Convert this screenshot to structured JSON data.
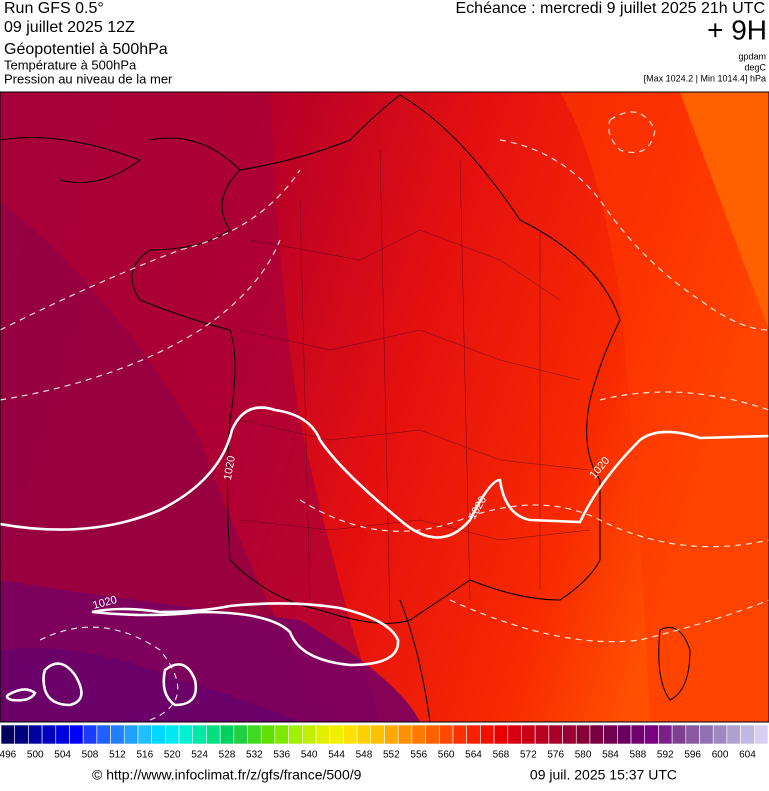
{
  "header": {
    "run": "Run GFS 0.5°",
    "run_date": "09 juillet 2025 12Z",
    "field_1": "Géopotentiel à 500hPa",
    "field_2": "Température à 500hPa",
    "field_3": "Pression au niveau de la mer",
    "valid_time": "Echéance : mercredi 9 juillet 2025 21h UTC",
    "lead": "+ 9H",
    "unit_1": "gpdam",
    "unit_2": "degC",
    "range": "[Max 1024.2 | Min 1014.4] hPa"
  },
  "map": {
    "contour_labels": [
      "1020",
      "1020",
      "1020",
      "1020"
    ]
  },
  "colorbar": {
    "ticks": [
      496,
      500,
      504,
      508,
      512,
      516,
      520,
      524,
      528,
      532,
      536,
      540,
      544,
      548,
      552,
      556,
      560,
      564,
      568,
      572,
      576,
      580,
      584,
      588,
      592,
      596,
      600,
      604
    ],
    "colors": [
      "#000060",
      "#000080",
      "#0000a0",
      "#0000c0",
      "#0000e0",
      "#0000ff",
      "#1a3cff",
      "#2060ff",
      "#2080ff",
      "#20a0ff",
      "#20c0ff",
      "#00d8ff",
      "#00e8f0",
      "#00f0d0",
      "#00e8a8",
      "#00e080",
      "#00d060",
      "#20d040",
      "#40d820",
      "#60e000",
      "#80e800",
      "#a0f000",
      "#c0f000",
      "#e0f000",
      "#f0f000",
      "#ffe000",
      "#ffd000",
      "#ffc000",
      "#ffa800",
      "#ff9000",
      "#ff7800",
      "#ff6000",
      "#ff4800",
      "#ff3000",
      "#f82000",
      "#f01000",
      "#e80000",
      "#d80010",
      "#c80018",
      "#b80020",
      "#a80028",
      "#980030",
      "#880038",
      "#780040",
      "#700050",
      "#680060",
      "#700070",
      "#780080",
      "#7a2088",
      "#804090",
      "#8858a0",
      "#9070b0",
      "#a088c0",
      "#b0a0d0",
      "#c0b8e0",
      "#d8d0f0"
    ]
  },
  "footer": {
    "source": "© http://www.infoclimat.fr/z/gfs/france/500/9",
    "generated": "09 juil. 2025 15:37 UTC"
  }
}
